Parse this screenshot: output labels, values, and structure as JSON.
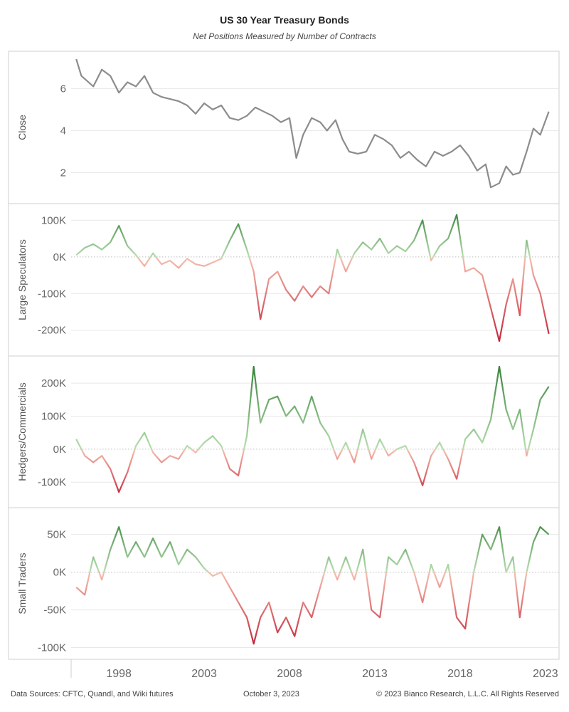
{
  "header": {
    "title": "US 30 Year Treasury Bonds",
    "subtitle": "Net Positions Measured by Number of Contracts"
  },
  "footer": {
    "sources": "Data Sources: CFTC, Quandl, and Wiki futures",
    "date": "October 3, 2023",
    "copyright": "© 2023 Bianco Research, L.L.C. All Rights Reserved"
  },
  "colors": {
    "close_line": "#8c8c8c",
    "positive_light": "#b8deb0",
    "positive_dark": "#2e7d32",
    "negative_light": "#f5c0b0",
    "negative_dark": "#c0142a",
    "gridline": "#e8e8e8",
    "zero_line": "#bbbbbb"
  },
  "chart_data": [
    {
      "type": "line",
      "ylabel": "Close",
      "x_ticks": [
        "1998",
        "2003",
        "2008",
        "2013",
        "2018",
        "2023"
      ],
      "y_ticks": [
        "2",
        "4",
        "6"
      ],
      "y_tick_values": [
        2,
        4,
        6
      ],
      "ylim": [
        0.8,
        7.5
      ],
      "x": [
        1996.0,
        1996.3,
        1997.0,
        1997.5,
        1998.0,
        1998.5,
        1999.0,
        1999.5,
        2000.0,
        2000.5,
        2001.0,
        2001.5,
        2002.0,
        2002.5,
        2003.0,
        2003.5,
        2004.0,
        2004.5,
        2005.0,
        2005.5,
        2006.0,
        2006.5,
        2007.0,
        2007.5,
        2008.0,
        2008.5,
        2008.9,
        2009.3,
        2009.8,
        2010.3,
        2010.7,
        2011.2,
        2011.6,
        2012.0,
        2012.5,
        2013.0,
        2013.5,
        2014.0,
        2014.5,
        2015.0,
        2015.5,
        2016.0,
        2016.5,
        2017.0,
        2017.5,
        2018.0,
        2018.5,
        2019.0,
        2019.5,
        2020.0,
        2020.3,
        2020.8,
        2021.2,
        2021.6,
        2022.0,
        2022.4,
        2022.8,
        2023.2,
        2023.7
      ],
      "series": [
        {
          "values": [
            7.4,
            6.6,
            6.1,
            6.9,
            6.6,
            5.8,
            6.3,
            6.1,
            6.6,
            5.8,
            5.6,
            5.5,
            5.4,
            5.2,
            4.8,
            5.3,
            5.0,
            5.2,
            4.6,
            4.5,
            4.7,
            5.1,
            4.9,
            4.7,
            4.4,
            4.6,
            2.7,
            3.8,
            4.6,
            4.4,
            4.0,
            4.5,
            3.6,
            3.0,
            2.9,
            3.0,
            3.8,
            3.6,
            3.3,
            2.7,
            3.0,
            2.6,
            2.3,
            3.0,
            2.8,
            3.0,
            3.3,
            2.8,
            2.1,
            2.4,
            1.3,
            1.5,
            2.3,
            1.9,
            2.0,
            3.0,
            4.1,
            3.8,
            4.9
          ]
        }
      ]
    },
    {
      "type": "line",
      "ylabel": "Large Speculators",
      "x_ticks": [
        "1998",
        "2003",
        "2008",
        "2013",
        "2018",
        "2023"
      ],
      "y_ticks": [
        "-200K",
        "-100K",
        "0K",
        "100K"
      ],
      "y_tick_values": [
        -200000,
        -100000,
        0,
        100000
      ],
      "ylim": [
        -255000,
        130000
      ],
      "x": [
        1996.0,
        1996.5,
        1997.0,
        1997.5,
        1998.0,
        1998.5,
        1999.0,
        1999.5,
        2000.0,
        2000.5,
        2001.0,
        2001.5,
        2002.0,
        2002.5,
        2003.0,
        2003.5,
        2004.0,
        2004.5,
        2005.0,
        2005.5,
        2006.0,
        2006.4,
        2006.8,
        2007.3,
        2007.8,
        2008.3,
        2008.8,
        2009.3,
        2009.8,
        2010.3,
        2010.8,
        2011.3,
        2011.8,
        2012.3,
        2012.8,
        2013.3,
        2013.8,
        2014.3,
        2014.8,
        2015.3,
        2015.8,
        2016.3,
        2016.8,
        2017.3,
        2017.8,
        2018.3,
        2018.8,
        2019.3,
        2019.8,
        2020.3,
        2020.8,
        2021.2,
        2021.6,
        2022.0,
        2022.4,
        2022.8,
        2023.2,
        2023.7
      ],
      "series": [
        {
          "values": [
            5000,
            25000,
            35000,
            20000,
            40000,
            85000,
            30000,
            5000,
            -25000,
            10000,
            -20000,
            -10000,
            -30000,
            -5000,
            -20000,
            -25000,
            -15000,
            -5000,
            45000,
            90000,
            20000,
            -40000,
            -170000,
            -60000,
            -40000,
            -90000,
            -120000,
            -80000,
            -110000,
            -80000,
            -100000,
            20000,
            -40000,
            10000,
            40000,
            20000,
            50000,
            10000,
            30000,
            15000,
            45000,
            100000,
            -10000,
            30000,
            50000,
            115000,
            -40000,
            -30000,
            -50000,
            -140000,
            -230000,
            -130000,
            -60000,
            -160000,
            45000,
            -50000,
            -100000,
            -210000
          ]
        }
      ]
    },
    {
      "type": "line",
      "ylabel": "Hedgers/Commercials",
      "x_ticks": [
        "1998",
        "2003",
        "2008",
        "2013",
        "2018",
        "2023"
      ],
      "y_ticks": [
        "-100K",
        "0K",
        "100K",
        "200K"
      ],
      "y_tick_values": [
        -100000,
        0,
        100000,
        200000
      ],
      "ylim": [
        -160000,
        265000
      ],
      "x": [
        1996.0,
        1996.5,
        1997.0,
        1997.5,
        1998.0,
        1998.5,
        1999.0,
        1999.5,
        2000.0,
        2000.5,
        2001.0,
        2001.5,
        2002.0,
        2002.5,
        2003.0,
        2003.5,
        2004.0,
        2004.5,
        2005.0,
        2005.5,
        2006.0,
        2006.4,
        2006.8,
        2007.3,
        2007.8,
        2008.3,
        2008.8,
        2009.3,
        2009.8,
        2010.3,
        2010.8,
        2011.3,
        2011.8,
        2012.3,
        2012.8,
        2013.3,
        2013.8,
        2014.3,
        2014.8,
        2015.3,
        2015.8,
        2016.3,
        2016.8,
        2017.3,
        2017.8,
        2018.3,
        2018.8,
        2019.3,
        2019.8,
        2020.3,
        2020.8,
        2021.2,
        2021.6,
        2022.0,
        2022.4,
        2022.8,
        2023.2,
        2023.7
      ],
      "series": [
        {
          "values": [
            30000,
            -20000,
            -40000,
            -20000,
            -60000,
            -130000,
            -70000,
            10000,
            50000,
            -10000,
            -40000,
            -20000,
            -30000,
            10000,
            -10000,
            20000,
            40000,
            10000,
            -60000,
            -80000,
            40000,
            250000,
            80000,
            150000,
            160000,
            100000,
            130000,
            80000,
            160000,
            80000,
            40000,
            -30000,
            20000,
            -40000,
            60000,
            -30000,
            30000,
            -20000,
            0,
            10000,
            -40000,
            -110000,
            -20000,
            20000,
            -30000,
            -90000,
            30000,
            60000,
            20000,
            90000,
            250000,
            120000,
            60000,
            120000,
            -20000,
            60000,
            150000,
            190000
          ]
        }
      ]
    },
    {
      "type": "line",
      "ylabel": "Small Traders",
      "x_ticks": [
        "1998",
        "2003",
        "2008",
        "2013",
        "2018",
        "2023"
      ],
      "y_ticks": [
        "-100K",
        "-50K",
        "0K",
        "50K"
      ],
      "y_tick_values": [
        -100000,
        -50000,
        0,
        50000
      ],
      "ylim": [
        -108000,
        78000
      ],
      "x": [
        1996.0,
        1996.5,
        1997.0,
        1997.5,
        1998.0,
        1998.5,
        1999.0,
        1999.5,
        2000.0,
        2000.5,
        2001.0,
        2001.5,
        2002.0,
        2002.5,
        2003.0,
        2003.5,
        2004.0,
        2004.5,
        2005.0,
        2005.5,
        2006.0,
        2006.4,
        2006.8,
        2007.3,
        2007.8,
        2008.3,
        2008.8,
        2009.3,
        2009.8,
        2010.3,
        2010.8,
        2011.3,
        2011.8,
        2012.3,
        2012.8,
        2013.3,
        2013.8,
        2014.3,
        2014.8,
        2015.3,
        2015.8,
        2016.3,
        2016.8,
        2017.3,
        2017.8,
        2018.3,
        2018.8,
        2019.3,
        2019.8,
        2020.3,
        2020.8,
        2021.2,
        2021.6,
        2022.0,
        2022.4,
        2022.8,
        2023.2,
        2023.7
      ],
      "series": [
        {
          "values": [
            -20000,
            -30000,
            20000,
            -10000,
            30000,
            60000,
            20000,
            40000,
            20000,
            45000,
            20000,
            40000,
            10000,
            30000,
            20000,
            5000,
            -5000,
            0,
            -20000,
            -40000,
            -60000,
            -95000,
            -60000,
            -40000,
            -80000,
            -60000,
            -85000,
            -40000,
            -60000,
            -20000,
            20000,
            -10000,
            20000,
            -10000,
            30000,
            -50000,
            -60000,
            20000,
            10000,
            30000,
            0,
            -40000,
            10000,
            -20000,
            10000,
            -60000,
            -75000,
            0,
            50000,
            30000,
            60000,
            0,
            20000,
            -60000,
            0,
            40000,
            60000,
            50000
          ]
        }
      ]
    }
  ]
}
